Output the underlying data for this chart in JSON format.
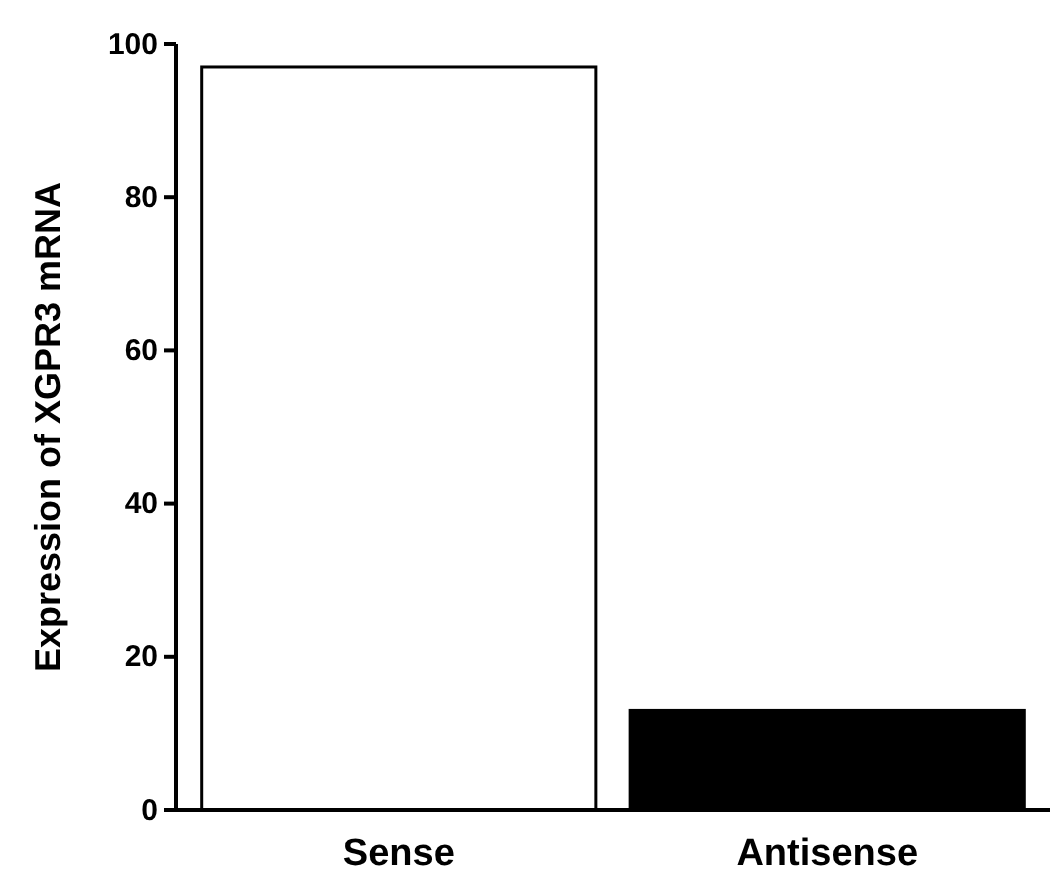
{
  "chart_data": {
    "type": "bar",
    "ylabel": "Expression of XGPR3 mRNA",
    "categories": [
      "Sense",
      "Antisense"
    ],
    "values": [
      97,
      13
    ],
    "colors": [
      "#ffffff",
      "#000000"
    ],
    "ylim": [
      0,
      100
    ],
    "yticks": [
      0,
      20,
      40,
      60,
      80,
      100
    ],
    "grid": false
  }
}
